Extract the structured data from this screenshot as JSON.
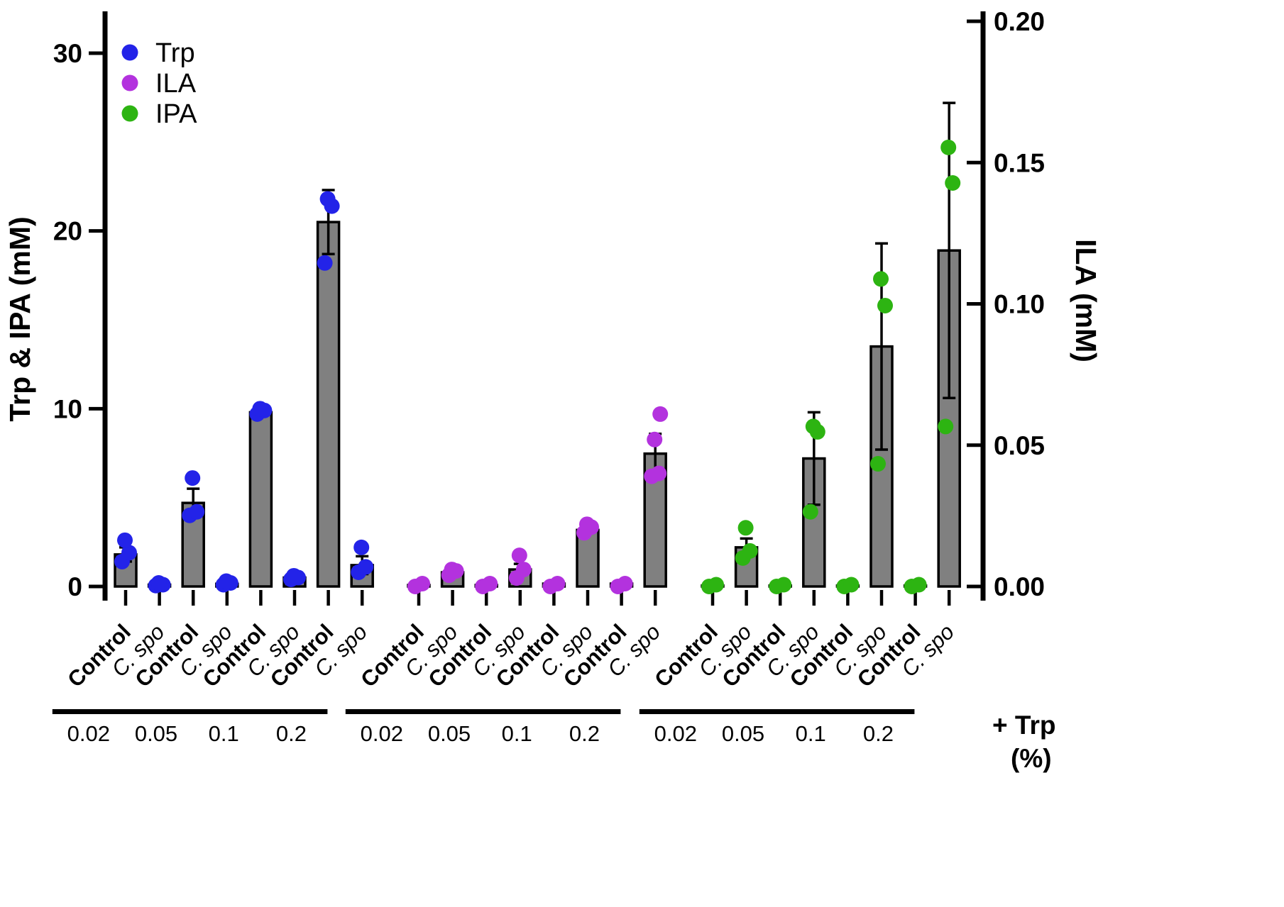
{
  "figure": {
    "bar_fill": "#808080",
    "legend": [
      {
        "label": "Trp",
        "color": "#2323e8"
      },
      {
        "label": "ILA",
        "color": "#b332de"
      },
      {
        "label": "IPA",
        "color": "#2db412"
      }
    ],
    "left_axis": {
      "title": "Trp & IPA (mM)",
      "ticks": [
        "0",
        "10",
        "20",
        "30"
      ],
      "max": 30
    },
    "right_axis": {
      "title": "ILA (mM)",
      "ticks": [
        "0.00",
        "0.05",
        "0.10",
        "0.15",
        "0.20"
      ],
      "max": 0.2
    },
    "x_caption_line1": "+ Trp",
    "x_caption_line2": "(%)"
  },
  "chart_data": {
    "type": "bar",
    "conditions": [
      "Control",
      "C. spo"
    ],
    "concentrations": [
      "0.02",
      "0.05",
      "0.1",
      "0.2"
    ],
    "panels": [
      {
        "series": "Trp",
        "axis": "left",
        "color": "#2323e8",
        "bars": [
          {
            "conc": "0.02",
            "condition": "Control",
            "value": 1.8,
            "sem": 0.4,
            "points": [
              1.4,
              1.9,
              2.6
            ]
          },
          {
            "conc": "0.02",
            "condition": "C. spo",
            "value": 0.1,
            "sem": 0,
            "points": [
              0.05,
              0.1,
              0.2
            ]
          },
          {
            "conc": "0.05",
            "condition": "Control",
            "value": 4.7,
            "sem": 0.8,
            "points": [
              4.0,
              4.2,
              6.1
            ]
          },
          {
            "conc": "0.05",
            "condition": "C. spo",
            "value": 0.15,
            "sem": 0,
            "points": [
              0.1,
              0.2,
              0.3
            ]
          },
          {
            "conc": "0.1",
            "condition": "Control",
            "value": 9.8,
            "sem": 0.2,
            "points": [
              9.7,
              9.9,
              10.0
            ]
          },
          {
            "conc": "0.1",
            "condition": "C. spo",
            "value": 0.5,
            "sem": 0,
            "points": [
              0.4,
              0.5,
              0.6
            ]
          },
          {
            "conc": "0.2",
            "condition": "Control",
            "value": 20.5,
            "sem": 1.8,
            "points": [
              18.2,
              21.4,
              21.8
            ]
          },
          {
            "conc": "0.2",
            "condition": "C. spo",
            "value": 1.2,
            "sem": 0.5,
            "points": [
              0.8,
              1.1,
              2.2
            ]
          }
        ]
      },
      {
        "series": "ILA",
        "axis": "right",
        "color": "#b332de",
        "bars": [
          {
            "conc": "0.02",
            "condition": "Control",
            "value": 0.0005,
            "sem": 0,
            "points": [
              0.0,
              0.001
            ]
          },
          {
            "conc": "0.02",
            "condition": "C. spo",
            "value": 0.005,
            "sem": 0.001,
            "points": [
              0.004,
              0.0055,
              0.006
            ]
          },
          {
            "conc": "0.05",
            "condition": "Control",
            "value": 0.0005,
            "sem": 0,
            "points": [
              0.0,
              0.001
            ]
          },
          {
            "conc": "0.05",
            "condition": "C. spo",
            "value": 0.006,
            "sem": 0.002,
            "points": [
              0.003,
              0.006,
              0.011
            ]
          },
          {
            "conc": "0.1",
            "condition": "Control",
            "value": 0.001,
            "sem": 0,
            "points": [
              0.0,
              0.001
            ]
          },
          {
            "conc": "0.1",
            "condition": "C. spo",
            "value": 0.02,
            "sem": 0.001,
            "points": [
              0.019,
              0.021,
              0.022
            ]
          },
          {
            "conc": "0.2",
            "condition": "Control",
            "value": 0.001,
            "sem": 0,
            "points": [
              0.0,
              0.001
            ]
          },
          {
            "conc": "0.2",
            "condition": "C. spo",
            "value": 0.047,
            "sem": 0.007,
            "points": [
              0.039,
              0.04,
              0.052,
              0.061
            ]
          }
        ]
      },
      {
        "series": "IPA",
        "axis": "left",
        "color": "#2db412",
        "bars": [
          {
            "conc": "0.02",
            "condition": "Control",
            "value": 0.05,
            "sem": 0,
            "points": [
              0.0,
              0.1
            ]
          },
          {
            "conc": "0.02",
            "condition": "C. spo",
            "value": 2.2,
            "sem": 0.5,
            "points": [
              1.6,
              2.0,
              3.3
            ]
          },
          {
            "conc": "0.05",
            "condition": "Control",
            "value": 0.05,
            "sem": 0,
            "points": [
              0.0,
              0.1
            ]
          },
          {
            "conc": "0.05",
            "condition": "C. spo",
            "value": 7.2,
            "sem": 2.6,
            "points": [
              4.2,
              8.7,
              9.0
            ]
          },
          {
            "conc": "0.1",
            "condition": "Control",
            "value": 0.05,
            "sem": 0,
            "points": [
              0.0,
              0.1
            ]
          },
          {
            "conc": "0.1",
            "condition": "C. spo",
            "value": 13.5,
            "sem": 5.8,
            "points": [
              6.9,
              15.8,
              17.3
            ]
          },
          {
            "conc": "0.2",
            "condition": "Control",
            "value": 0.05,
            "sem": 0,
            "points": [
              0.0,
              0.1
            ]
          },
          {
            "conc": "0.2",
            "condition": "C. spo",
            "value": 18.9,
            "sem": 8.3,
            "points": [
              9.0,
              22.7,
              24.7
            ]
          }
        ]
      }
    ]
  }
}
